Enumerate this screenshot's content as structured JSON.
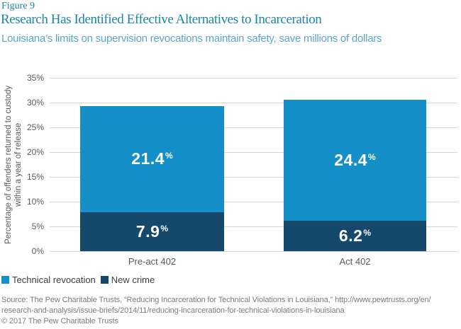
{
  "header": {
    "figure_label": "Figure 9",
    "title": "Research Has Identified Effective Alternatives to Incarceration",
    "subtitle": "Louisiana’s limits on supervision revocations maintain safety, save millions of dollars"
  },
  "colors": {
    "title_teal": "#1c85ab",
    "subtitle_blue": "#5ba5c8",
    "technical_revocation": "#148fc7",
    "new_crime": "#14496b",
    "gridline": "#d6d6d6",
    "axis_text": "#595959",
    "legend_text": "#3d3d3d",
    "source_text": "#7b7b7b"
  },
  "chart_data": {
    "type": "bar",
    "stacked": true,
    "categories": [
      "Pre-act 402",
      "Act 402"
    ],
    "series": [
      {
        "name": "Technical revocation",
        "color": "#148fc7",
        "values": [
          21.4,
          24.4
        ]
      },
      {
        "name": "New crime",
        "color": "#14496b",
        "values": [
          7.9,
          6.2
        ]
      }
    ],
    "totals": [
      29.3,
      30.6
    ],
    "value_suffix": "%",
    "ylabel": "Percentage of offenders returned to custody within a year of release",
    "ylabel_lines": [
      "Percentage of offenders returned to custody",
      "within a year of release"
    ],
    "ylim": [
      0,
      35
    ],
    "yticks": [
      "0%",
      "5%",
      "10%",
      "15%",
      "20%",
      "25%",
      "30%",
      "35%"
    ],
    "grid": true,
    "legend_position": "bottom-left"
  },
  "legend": [
    {
      "label": "Technical revocation",
      "color": "#148fc7"
    },
    {
      "label": "New crime",
      "color": "#14496b"
    }
  ],
  "footer": {
    "source_lines": [
      "Source: The Pew Charitable Trusts, “Reducing Incarceration for Technical Violations in Louisiana,” http://www.pewtrusts.org/en/",
      "research-and-analysis/issue-briefs/2014/11/reducing-incarceration-for-technical-violations-in-louisiana"
    ],
    "copyright": "© 2017 The Pew Charitable Trusts"
  }
}
